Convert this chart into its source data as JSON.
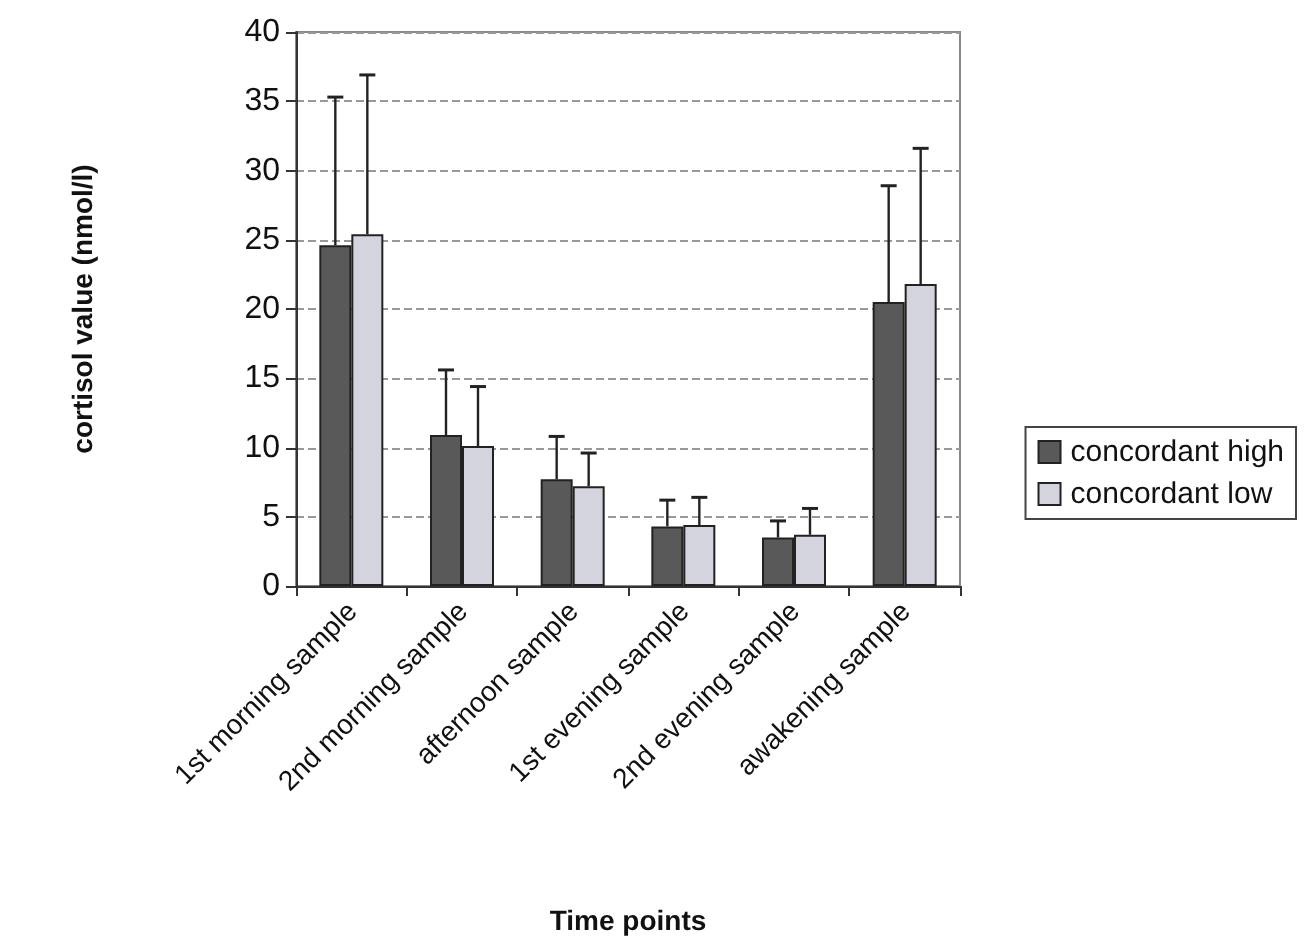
{
  "chart_data": {
    "type": "bar",
    "xlabel": "Time points",
    "ylabel": "cortisol value (nmol/l)",
    "categories": [
      "1st morning sample",
      "2nd morning sample",
      "afternoon sample",
      "1st evening sample",
      "2nd evening sample",
      "awakening sample"
    ],
    "series": [
      {
        "name": "concordant high",
        "color": "#595959",
        "values": [
          24.6,
          10.9,
          7.7,
          4.3,
          3.5,
          20.5
        ],
        "errors": [
          10.7,
          4.7,
          3.1,
          1.9,
          1.2,
          8.4
        ]
      },
      {
        "name": "concordant low",
        "color": "#d4d4de",
        "values": [
          25.4,
          10.1,
          7.2,
          4.4,
          3.7,
          21.8
        ],
        "errors": [
          11.5,
          4.3,
          2.4,
          2.0,
          1.9,
          9.8
        ]
      }
    ],
    "ylim": [
      0,
      40
    ],
    "yticks": [
      0,
      5,
      10,
      15,
      20,
      25,
      30,
      35,
      40
    ],
    "grid": "y",
    "legend": "right"
  }
}
